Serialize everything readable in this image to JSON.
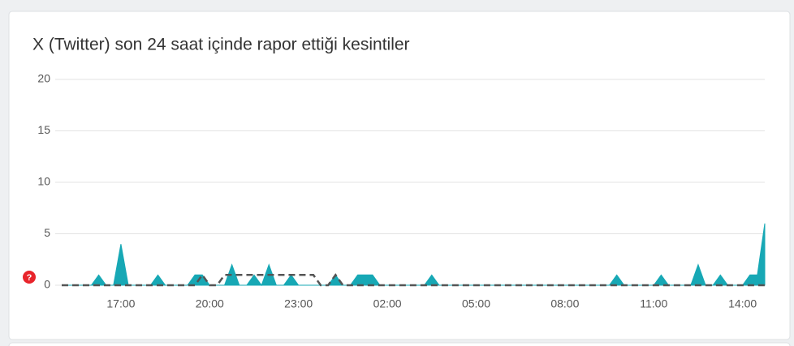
{
  "chart_data": {
    "type": "area",
    "title": "X (Twitter) son 24 saat içinde rapor ettiği kesintiler",
    "categories": [
      null,
      null,
      null,
      null,
      null,
      null,
      null,
      null,
      "17:00",
      null,
      null,
      null,
      null,
      null,
      null,
      null,
      null,
      null,
      null,
      null,
      "20:00",
      null,
      null,
      null,
      null,
      null,
      null,
      null,
      null,
      null,
      null,
      null,
      "23:00",
      null,
      null,
      null,
      null,
      null,
      null,
      null,
      null,
      null,
      null,
      null,
      "02:00",
      null,
      null,
      null,
      null,
      null,
      null,
      null,
      null,
      null,
      null,
      null,
      "05:00",
      null,
      null,
      null,
      null,
      null,
      null,
      null,
      null,
      null,
      null,
      null,
      "08:00",
      null,
      null,
      null,
      null,
      null,
      null,
      null,
      null,
      null,
      null,
      null,
      "11:00",
      null,
      null,
      null,
      null,
      null,
      null,
      null,
      null,
      null,
      null,
      null,
      "14:00",
      null,
      null,
      null
    ],
    "series": [
      {
        "color": "#17a8b5",
        "fill": true,
        "values": [
          0,
          0,
          0,
          0,
          0,
          1,
          0,
          0,
          4,
          0,
          0,
          0,
          0,
          1,
          0,
          0,
          0,
          0,
          1,
          1,
          0,
          0,
          0,
          2,
          0,
          0,
          1,
          0,
          2,
          0,
          0,
          1,
          0,
          0,
          0,
          0,
          0,
          1,
          0,
          0,
          1,
          1,
          1,
          0,
          0,
          0,
          0,
          0,
          0,
          0,
          1,
          0,
          0,
          0,
          0,
          0,
          0,
          0,
          0,
          0,
          0,
          0,
          0,
          0,
          0,
          0,
          0,
          0,
          0,
          0,
          0,
          0,
          0,
          0,
          0,
          1,
          0,
          0,
          0,
          0,
          0,
          1,
          0,
          0,
          0,
          0,
          2,
          0,
          0,
          1,
          0,
          0,
          0,
          1,
          1,
          6
        ]
      },
      {
        "color": "#555555",
        "dashed": true,
        "values": [
          0,
          0,
          0,
          0,
          0,
          0,
          0,
          0,
          0,
          0,
          0,
          0,
          0,
          0,
          0,
          0,
          0,
          0,
          0,
          1,
          0,
          0,
          1,
          1,
          1,
          1,
          1,
          1,
          1,
          1,
          1,
          1,
          1,
          1,
          1,
          0,
          0,
          1,
          0,
          0,
          0,
          0,
          0,
          0,
          0,
          0,
          0,
          0,
          0,
          0,
          0,
          0,
          0,
          0,
          0,
          0,
          0,
          0,
          0,
          0,
          0,
          0,
          0,
          0,
          0,
          0,
          0,
          0,
          0,
          0,
          0,
          0,
          0,
          0,
          0,
          0,
          0,
          0,
          0,
          0,
          0,
          0,
          0,
          0,
          0,
          0,
          0,
          0,
          0,
          0,
          0,
          0,
          0,
          0,
          0,
          0
        ]
      }
    ],
    "ylim": [
      0,
      20
    ],
    "yticks": [
      0,
      5,
      10,
      15,
      20
    ],
    "grid": true
  }
}
